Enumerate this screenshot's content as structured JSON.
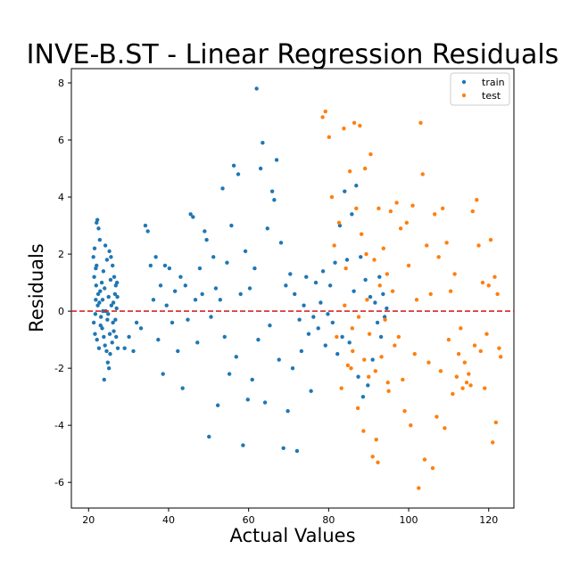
{
  "chart_data": {
    "type": "scatter",
    "title": "INVE-B.ST - Linear Regression Residuals",
    "xlabel": "Actual Values",
    "ylabel": "Residuals",
    "xlim": [
      15.7,
      126.3
    ],
    "ylim": [
      -6.9,
      8.5
    ],
    "xticks": [
      20,
      40,
      60,
      80,
      100,
      120
    ],
    "yticks": [
      -6,
      -4,
      -2,
      0,
      2,
      4,
      6,
      8
    ],
    "grid": false,
    "legend_position": "top-right",
    "reference_line": {
      "y": 0,
      "color": "#d62728",
      "style": "dashed"
    },
    "series": [
      {
        "name": "train",
        "color": "#1f77b4",
        "points": [
          [
            21.2,
            1.9
          ],
          [
            21.5,
            2.2
          ],
          [
            21.8,
            1.5
          ],
          [
            22.0,
            3.1
          ],
          [
            22.2,
            3.2
          ],
          [
            22.5,
            2.9
          ],
          [
            22.8,
            2.5
          ],
          [
            21.4,
            1.2
          ],
          [
            21.9,
            0.9
          ],
          [
            22.4,
            0.6
          ],
          [
            22.7,
            0.3
          ],
          [
            23.1,
            -0.2
          ],
          [
            23.4,
            -0.6
          ],
          [
            23.8,
            -0.9
          ],
          [
            24.1,
            -1.2
          ],
          [
            24.5,
            -1.4
          ],
          [
            24.8,
            -1.8
          ],
          [
            25.1,
            -2.0
          ],
          [
            25.4,
            -1.5
          ],
          [
            25.9,
            -1.1
          ],
          [
            26.3,
            -0.7
          ],
          [
            26.7,
            -0.3
          ],
          [
            27.0,
            0.1
          ],
          [
            27.2,
            0.5
          ],
          [
            26.8,
            0.9
          ],
          [
            26.4,
            1.2
          ],
          [
            26.0,
            1.6
          ],
          [
            25.6,
            1.9
          ],
          [
            25.2,
            2.1
          ],
          [
            24.6,
            1.8
          ],
          [
            23.7,
            1.4
          ],
          [
            23.3,
            1.0
          ],
          [
            22.9,
            0.7
          ],
          [
            22.3,
            0.2
          ],
          [
            21.7,
            -0.1
          ],
          [
            21.3,
            -0.4
          ],
          [
            21.6,
            -0.8
          ],
          [
            22.1,
            -1.0
          ],
          [
            22.6,
            -1.3
          ],
          [
            23.0,
            -0.5
          ],
          [
            23.5,
            0.4
          ],
          [
            24.0,
            0.8
          ],
          [
            24.3,
            0.0
          ],
          [
            24.7,
            -0.3
          ],
          [
            25.0,
            0.5
          ],
          [
            25.3,
            -0.8
          ],
          [
            25.7,
            0.2
          ],
          [
            26.1,
            -0.4
          ],
          [
            26.6,
            0.6
          ],
          [
            26.9,
            -0.9
          ],
          [
            27.3,
            -1.3
          ],
          [
            27.1,
            1.0
          ],
          [
            23.9,
            -2.4
          ],
          [
            24.2,
            2.3
          ],
          [
            25.5,
            1.1
          ],
          [
            22.0,
            1.6
          ],
          [
            23.6,
            0.0
          ],
          [
            24.9,
            -0.1
          ],
          [
            26.2,
            0.3
          ],
          [
            21.8,
            0.4
          ],
          [
            29.0,
            -1.3
          ],
          [
            30.1,
            -0.9
          ],
          [
            31.2,
            -1.4
          ],
          [
            32.0,
            -0.4
          ],
          [
            33.1,
            -0.6
          ],
          [
            34.2,
            3.0
          ],
          [
            34.8,
            2.8
          ],
          [
            35.5,
            1.6
          ],
          [
            36.2,
            0.4
          ],
          [
            36.8,
            1.9
          ],
          [
            37.4,
            -1.0
          ],
          [
            38.0,
            0.9
          ],
          [
            38.6,
            -2.2
          ],
          [
            39.1,
            1.6
          ],
          [
            39.5,
            0.2
          ],
          [
            40.2,
            1.5
          ],
          [
            40.9,
            -0.4
          ],
          [
            41.6,
            0.7
          ],
          [
            42.3,
            -1.4
          ],
          [
            43.0,
            1.2
          ],
          [
            43.5,
            -2.7
          ],
          [
            44.2,
            0.9
          ],
          [
            44.8,
            -0.3
          ],
          [
            45.5,
            3.4
          ],
          [
            46.1,
            3.3
          ],
          [
            46.7,
            0.4
          ],
          [
            47.2,
            -1.1
          ],
          [
            47.8,
            1.5
          ],
          [
            48.4,
            0.6
          ],
          [
            49.0,
            2.8
          ],
          [
            49.5,
            2.5
          ],
          [
            50.1,
            -4.4
          ],
          [
            50.6,
            -0.2
          ],
          [
            51.2,
            1.9
          ],
          [
            51.8,
            0.8
          ],
          [
            52.3,
            -3.3
          ],
          [
            52.9,
            0.4
          ],
          [
            53.5,
            4.3
          ],
          [
            54.0,
            -0.9
          ],
          [
            54.6,
            1.7
          ],
          [
            55.2,
            -2.2
          ],
          [
            55.7,
            3.0
          ],
          [
            56.3,
            5.1
          ],
          [
            56.9,
            -1.6
          ],
          [
            57.4,
            4.8
          ],
          [
            58.0,
            0.6
          ],
          [
            58.6,
            -4.7
          ],
          [
            59.2,
            2.1
          ],
          [
            59.8,
            -3.1
          ],
          [
            60.3,
            0.8
          ],
          [
            60.9,
            -2.4
          ],
          [
            61.5,
            1.5
          ],
          [
            62.0,
            7.8
          ],
          [
            62.4,
            -1.0
          ],
          [
            63.0,
            5.0
          ],
          [
            63.5,
            5.9
          ],
          [
            64.1,
            -3.2
          ],
          [
            64.7,
            2.9
          ],
          [
            65.3,
            -0.5
          ],
          [
            65.9,
            4.2
          ],
          [
            66.4,
            3.9
          ],
          [
            67.0,
            5.3
          ],
          [
            67.6,
            -1.7
          ],
          [
            68.1,
            2.4
          ],
          [
            68.7,
            -4.8
          ],
          [
            69.3,
            0.9
          ],
          [
            69.8,
            -3.5
          ],
          [
            70.4,
            1.3
          ],
          [
            71.0,
            -2.0
          ],
          [
            71.5,
            0.6
          ],
          [
            72.1,
            -4.9
          ],
          [
            72.7,
            -0.3
          ],
          [
            73.2,
            -1.4
          ],
          [
            73.8,
            0.2
          ],
          [
            74.4,
            1.2
          ],
          [
            75.0,
            -0.8
          ],
          [
            75.6,
            -2.8
          ],
          [
            76.2,
            -0.2
          ],
          [
            76.8,
            1.0
          ],
          [
            77.4,
            -0.6
          ],
          [
            78.0,
            0.3
          ],
          [
            78.6,
            1.4
          ],
          [
            79.2,
            -1.2
          ],
          [
            79.8,
            -0.1
          ],
          [
            80.4,
            0.9
          ],
          [
            81.0,
            -0.4
          ],
          [
            81.6,
            1.7
          ],
          [
            82.2,
            -1.5
          ],
          [
            82.8,
            3.0
          ],
          [
            83.4,
            -0.9
          ],
          [
            84.0,
            4.2
          ],
          [
            84.6,
            1.8
          ],
          [
            85.2,
            -1.1
          ],
          [
            85.8,
            3.4
          ],
          [
            86.3,
            0.7
          ],
          [
            86.9,
            4.4
          ],
          [
            87.4,
            -2.3
          ],
          [
            88.0,
            1.9
          ],
          [
            88.6,
            -3.0
          ],
          [
            89.2,
            1.1
          ],
          [
            89.8,
            -2.6
          ],
          [
            90.4,
            0.5
          ],
          [
            91.0,
            -1.7
          ],
          [
            91.6,
            0.3
          ],
          [
            92.2,
            -0.4
          ],
          [
            92.7,
            1.2
          ],
          [
            93.1,
            -0.9
          ],
          [
            93.6,
            0.6
          ],
          [
            94.0,
            -0.2
          ],
          [
            94.5,
            0.1
          ]
        ]
      },
      {
        "name": "test",
        "color": "#ff7f0e",
        "points": [
          [
            78.5,
            6.8
          ],
          [
            79.2,
            7.0
          ],
          [
            80.1,
            6.1
          ],
          [
            80.8,
            4.0
          ],
          [
            81.4,
            2.3
          ],
          [
            82.0,
            -0.9
          ],
          [
            82.6,
            3.1
          ],
          [
            83.2,
            -2.7
          ],
          [
            83.8,
            6.4
          ],
          [
            84.3,
            1.5
          ],
          [
            84.8,
            -1.9
          ],
          [
            85.3,
            4.9
          ],
          [
            85.9,
            -0.6
          ],
          [
            86.4,
            6.6
          ],
          [
            86.9,
            3.6
          ],
          [
            87.3,
            -3.4
          ],
          [
            87.8,
            6.5
          ],
          [
            88.2,
            2.7
          ],
          [
            88.7,
            -4.2
          ],
          [
            89.1,
            5.0
          ],
          [
            89.6,
            0.4
          ],
          [
            90.0,
            -2.3
          ],
          [
            90.5,
            5.5
          ],
          [
            91.0,
            -5.1
          ],
          [
            91.4,
            1.8
          ],
          [
            91.9,
            -4.5
          ],
          [
            92.3,
            -5.3
          ],
          [
            92.8,
            0.9
          ],
          [
            93.2,
            -1.6
          ],
          [
            93.7,
            2.2
          ],
          [
            94.1,
            -0.3
          ],
          [
            94.6,
            1.3
          ],
          [
            95.0,
            -2.8
          ],
          [
            95.5,
            3.5
          ],
          [
            96.0,
            0.7
          ],
          [
            96.5,
            -1.2
          ],
          [
            97.0,
            3.8
          ],
          [
            97.5,
            -0.9
          ],
          [
            98.0,
            2.9
          ],
          [
            98.5,
            -2.4
          ],
          [
            99.0,
            -3.5
          ],
          [
            99.5,
            3.1
          ],
          [
            100.0,
            1.6
          ],
          [
            100.5,
            -4.0
          ],
          [
            101.0,
            3.7
          ],
          [
            101.5,
            -1.5
          ],
          [
            102.0,
            0.4
          ],
          [
            102.5,
            -6.2
          ],
          [
            103.0,
            6.6
          ],
          [
            103.5,
            4.8
          ],
          [
            104.0,
            -5.2
          ],
          [
            104.5,
            2.3
          ],
          [
            105.0,
            -1.8
          ],
          [
            105.5,
            0.6
          ],
          [
            106.0,
            -5.5
          ],
          [
            106.5,
            3.4
          ],
          [
            107.0,
            -3.7
          ],
          [
            107.5,
            1.9
          ],
          [
            108.0,
            -2.1
          ],
          [
            108.5,
            3.6
          ],
          [
            109.0,
            -4.1
          ],
          [
            109.5,
            2.4
          ],
          [
            110.0,
            -1.0
          ],
          [
            110.5,
            0.7
          ],
          [
            111.0,
            -2.9
          ],
          [
            111.5,
            1.3
          ],
          [
            112.0,
            -2.3
          ],
          [
            112.5,
            -1.5
          ],
          [
            113.0,
            -0.6
          ],
          [
            113.5,
            -2.7
          ],
          [
            114.0,
            -1.8
          ],
          [
            114.5,
            -2.5
          ],
          [
            115.0,
            -2.2
          ],
          [
            115.5,
            -2.6
          ],
          [
            116.0,
            3.5
          ],
          [
            116.5,
            -1.2
          ],
          [
            117.0,
            3.9
          ],
          [
            117.5,
            2.3
          ],
          [
            118.0,
            -1.4
          ],
          [
            118.5,
            1.0
          ],
          [
            119.0,
            -2.7
          ],
          [
            119.5,
            -0.8
          ],
          [
            120.0,
            0.9
          ],
          [
            120.5,
            2.5
          ],
          [
            121.0,
            -4.6
          ],
          [
            121.5,
            1.2
          ],
          [
            121.8,
            -3.9
          ],
          [
            122.2,
            0.6
          ],
          [
            122.6,
            -1.3
          ],
          [
            123.0,
            -1.6
          ],
          [
            86.0,
            -1.4
          ],
          [
            87.5,
            -0.2
          ],
          [
            88.9,
            -1.7
          ],
          [
            90.2,
            -0.8
          ],
          [
            84.0,
            0.2
          ],
          [
            85.6,
            -2.0
          ],
          [
            89.4,
            2.0
          ],
          [
            91.7,
            -2.1
          ],
          [
            92.5,
            3.6
          ],
          [
            94.8,
            -2.5
          ]
        ]
      }
    ]
  }
}
